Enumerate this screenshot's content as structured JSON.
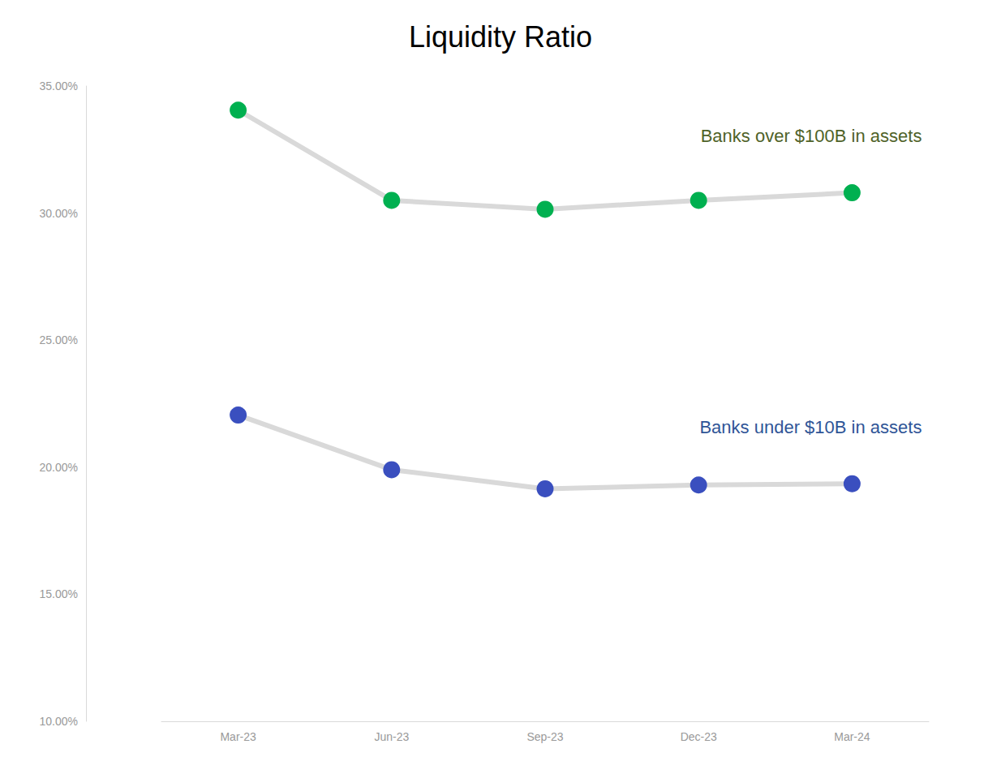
{
  "chart_data": {
    "type": "line",
    "title": "Liquidity Ratio",
    "categories": [
      "Mar-23",
      "Jun-23",
      "Sep-23",
      "Dec-23",
      "Mar-24"
    ],
    "series": [
      {
        "name": "Banks over $100B in assets",
        "color": "#00b050",
        "marker": "circle",
        "values": [
          34.05,
          30.5,
          30.15,
          30.5,
          30.8
        ]
      },
      {
        "name": "Banks under $10B in assets",
        "color": "#3a4fbf",
        "marker": "circle",
        "values": [
          22.05,
          19.9,
          19.15,
          19.3,
          19.35
        ]
      }
    ],
    "ylim": [
      10,
      35
    ],
    "yticks": [
      {
        "value": 10,
        "label": "10.00%"
      },
      {
        "value": 15,
        "label": "15.00%"
      },
      {
        "value": 20,
        "label": "20.00%"
      },
      {
        "value": 25,
        "label": "25.00%"
      },
      {
        "value": 30,
        "label": "30.00%"
      },
      {
        "value": 35,
        "label": "35.00%"
      }
    ],
    "grid": false,
    "legend": "none"
  }
}
